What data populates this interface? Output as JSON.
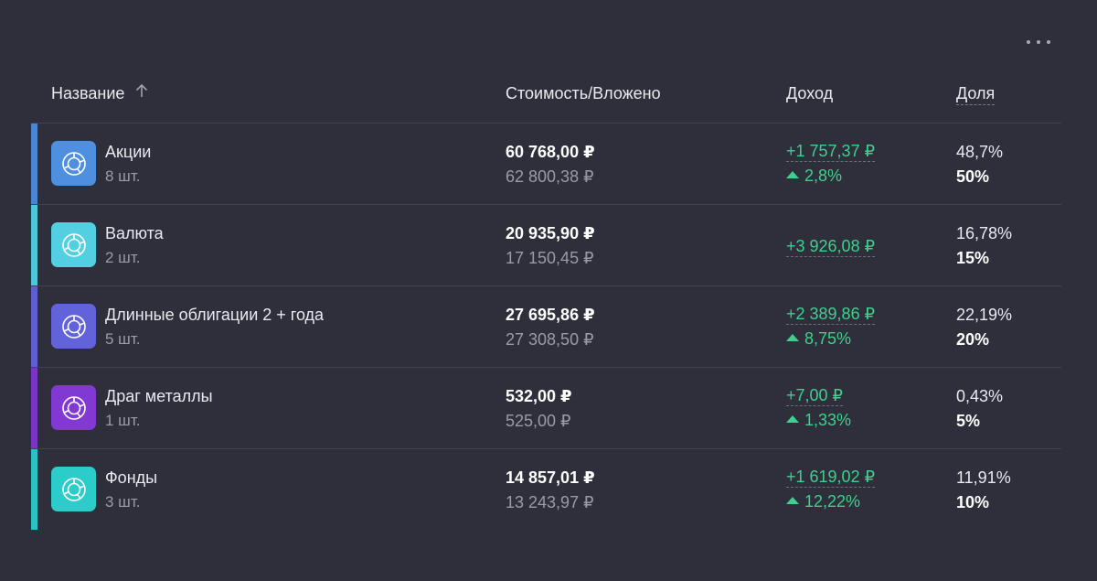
{
  "header": {
    "name": "Название",
    "value": "Стоимость/Вложено",
    "income": "Доход",
    "share": "Доля"
  },
  "rows": [
    {
      "color": "#4a86d4",
      "icon_bg": "#4f8fe0",
      "name": "Акции",
      "count": "8 шт.",
      "value": "60 768,00 ₽",
      "invested": "62 800,38 ₽",
      "income": "+1 757,37 ₽",
      "income_pct": "2,8%",
      "share": "48,7%",
      "target_share": "50%"
    },
    {
      "color": "#4cc8d9",
      "icon_bg": "#52d0e2",
      "name": "Валюта",
      "count": "2 шт.",
      "value": "20 935,90 ₽",
      "invested": "17 150,45 ₽",
      "income": "+3 926,08 ₽",
      "income_pct": "",
      "share": "16,78%",
      "target_share": "15%"
    },
    {
      "color": "#5e5fd0",
      "icon_bg": "#6263da",
      "name": "Длинные облигации 2 + года",
      "count": "5 шт.",
      "value": "27 695,86 ₽",
      "invested": "27 308,50 ₽",
      "income": "+2 389,86 ₽",
      "income_pct": "8,75%",
      "share": "22,19%",
      "target_share": "20%"
    },
    {
      "color": "#7c34c8",
      "icon_bg": "#8239d3",
      "name": "Драг металлы",
      "count": "1 шт.",
      "value": "532,00 ₽",
      "invested": "525,00 ₽",
      "income": "+7,00 ₽",
      "income_pct": "1,33%",
      "share": "0,43%",
      "target_share": "5%"
    },
    {
      "color": "#28c4c4",
      "icon_bg": "#2ccccb",
      "name": "Фонды",
      "count": "3 шт.",
      "value": "14 857,01 ₽",
      "invested": "13 243,97 ₽",
      "income": "+1 619,02 ₽",
      "income_pct": "12,22%",
      "share": "11,91%",
      "target_share": "10%"
    }
  ]
}
